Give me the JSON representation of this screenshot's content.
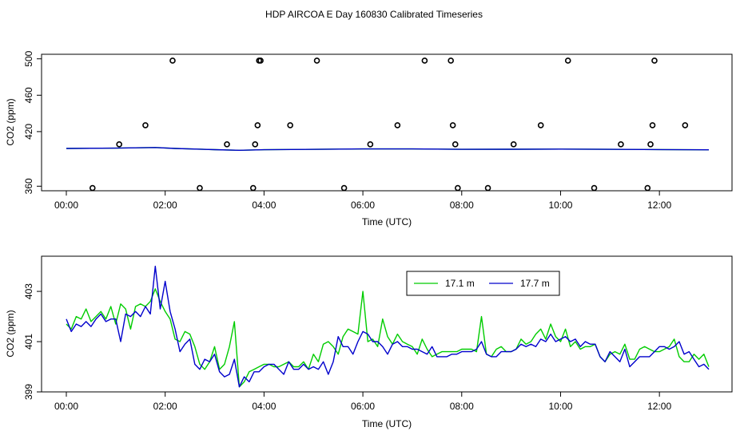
{
  "figure": {
    "title": "HDP AIRCOA E  Day 160830  Calibrated Timeseries"
  },
  "colors": {
    "axis": "#000000",
    "series_17_1": "#00cc00",
    "series_17_7": "#0000cc",
    "cal_points": "#000000"
  },
  "chart_data": [
    {
      "type": "line",
      "xlabel": "Time (UTC)",
      "ylabel": "CO2 (ppm)",
      "xlim": [
        0,
        13.0
      ],
      "ylim": [
        355,
        505
      ],
      "x_ticks": [
        0,
        2,
        4,
        6,
        8,
        10,
        12
      ],
      "x_tick_labels": [
        "00:00",
        "02:00",
        "04:00",
        "06:00",
        "08:00",
        "10:00",
        "12:00"
      ],
      "y_ticks": [
        360,
        420,
        460,
        500
      ],
      "y_tick_labels": [
        "360",
        "420",
        "460",
        "500"
      ],
      "series": [
        {
          "color_key": "series_17_1",
          "x": [
            0.0,
            1.0,
            1.8,
            2.2,
            3.0,
            3.5,
            4.0,
            6.0,
            7.0,
            8.0,
            9.0,
            10.0,
            11.0,
            12.0,
            13.0
          ],
          "values": [
            401.5,
            401.8,
            402.5,
            401.5,
            400.2,
            399.5,
            400.1,
            401.0,
            401.0,
            400.5,
            400.6,
            400.8,
            400.5,
            400.3,
            400.0
          ]
        },
        {
          "color_key": "series_17_7",
          "x": [
            0.0,
            1.0,
            1.8,
            2.2,
            3.0,
            3.5,
            4.0,
            6.0,
            7.0,
            8.0,
            9.0,
            10.0,
            11.0,
            12.0,
            13.0
          ],
          "values": [
            401.5,
            401.8,
            402.5,
            401.5,
            400.2,
            399.5,
            400.1,
            401.0,
            401.0,
            400.5,
            400.6,
            400.8,
            400.5,
            400.3,
            400.0
          ]
        }
      ],
      "calibration_points": {
        "x": [
          0.53,
          1.07,
          1.6,
          2.15,
          2.7,
          3.25,
          3.78,
          3.82,
          3.87,
          3.9,
          3.93,
          4.53,
          5.07,
          5.62,
          6.15,
          6.7,
          7.25,
          7.78,
          7.82,
          7.87,
          7.92,
          8.53,
          9.05,
          9.6,
          10.15,
          10.68,
          11.22,
          11.76,
          11.82,
          11.86,
          11.9,
          12.52
        ],
        "values": [
          358,
          406,
          427,
          498,
          358,
          406,
          358,
          406,
          427,
          498,
          498,
          427,
          498,
          358,
          406,
          427,
          498,
          498,
          427,
          406,
          358,
          358,
          406,
          427,
          498,
          358,
          406,
          358,
          406,
          427,
          498,
          427
        ]
      }
    },
    {
      "type": "line",
      "xlabel": "Time (UTC)",
      "ylabel": "CO2 (ppm)",
      "xlim": [
        0,
        13.0
      ],
      "ylim": [
        399.0,
        404.4
      ],
      "x_ticks": [
        0,
        2,
        4,
        6,
        8,
        10,
        12
      ],
      "x_tick_labels": [
        "00:00",
        "02:00",
        "04:00",
        "06:00",
        "08:00",
        "10:00",
        "12:00"
      ],
      "y_ticks": [
        399,
        401,
        403
      ],
      "y_tick_labels": [
        "399",
        "401",
        "403"
      ],
      "legend": {
        "placement": "top-right",
        "entries": [
          "17.1 m",
          "17.7 m"
        ]
      },
      "series": [
        {
          "name": "17.1 m",
          "color_key": "series_17_1",
          "x": [
            0.0,
            0.1,
            0.2,
            0.3,
            0.4,
            0.5,
            0.6,
            0.7,
            0.8,
            0.9,
            1.0,
            1.1,
            1.2,
            1.3,
            1.4,
            1.5,
            1.6,
            1.7,
            1.8,
            1.9,
            2.0,
            2.1,
            2.2,
            2.3,
            2.4,
            2.5,
            2.6,
            2.7,
            2.8,
            2.9,
            3.0,
            3.1,
            3.2,
            3.3,
            3.4,
            3.5,
            3.6,
            3.7,
            3.8,
            3.9,
            4.0,
            4.1,
            4.2,
            4.3,
            4.4,
            4.5,
            4.6,
            4.7,
            4.8,
            4.9,
            5.0,
            5.1,
            5.2,
            5.3,
            5.4,
            5.5,
            5.6,
            5.7,
            5.8,
            5.9,
            6.0,
            6.1,
            6.2,
            6.3,
            6.4,
            6.5,
            6.6,
            6.7,
            6.8,
            6.9,
            7.0,
            7.1,
            7.2,
            7.3,
            7.4,
            7.5,
            7.6,
            7.7,
            7.8,
            7.9,
            8.0,
            8.1,
            8.2,
            8.3,
            8.4,
            8.5,
            8.6,
            8.7,
            8.8,
            8.9,
            9.0,
            9.1,
            9.2,
            9.3,
            9.4,
            9.5,
            9.6,
            9.7,
            9.8,
            9.9,
            10.0,
            10.1,
            10.2,
            10.3,
            10.4,
            10.5,
            10.6,
            10.7,
            10.8,
            10.9,
            11.0,
            11.1,
            11.2,
            11.3,
            11.4,
            11.5,
            11.6,
            11.7,
            11.8,
            11.9,
            12.0,
            12.1,
            12.2,
            12.3,
            12.4,
            12.5,
            12.6,
            12.7,
            12.8,
            12.9,
            13.0
          ],
          "values": [
            401.7,
            401.5,
            402.0,
            401.9,
            402.3,
            401.8,
            402.0,
            402.2,
            401.9,
            402.4,
            401.7,
            402.5,
            402.3,
            401.5,
            402.4,
            402.5,
            402.4,
            402.6,
            403.1,
            402.6,
            402.2,
            401.9,
            401.1,
            401.0,
            401.4,
            401.3,
            400.8,
            400.1,
            399.9,
            400.2,
            400.8,
            399.9,
            400.1,
            400.8,
            401.8,
            399.2,
            399.4,
            399.8,
            399.9,
            400.0,
            400.1,
            400.1,
            400.0,
            400.0,
            400.1,
            400.2,
            400.0,
            400.0,
            400.2,
            399.9,
            400.5,
            400.2,
            400.9,
            401.0,
            400.8,
            400.5,
            401.2,
            401.5,
            401.4,
            401.3,
            403.0,
            401.0,
            401.1,
            400.8,
            401.9,
            401.2,
            400.9,
            401.3,
            401.0,
            400.9,
            400.8,
            400.5,
            401.1,
            400.7,
            400.4,
            400.5,
            400.6,
            400.6,
            400.6,
            400.6,
            400.7,
            400.7,
            400.7,
            400.6,
            402.0,
            400.5,
            400.4,
            400.7,
            400.8,
            400.6,
            400.6,
            400.7,
            401.1,
            400.9,
            401.0,
            401.3,
            401.5,
            401.1,
            401.7,
            401.2,
            401.0,
            401.5,
            400.8,
            401.0,
            400.7,
            400.8,
            400.8,
            400.9,
            400.4,
            400.2,
            400.5,
            400.6,
            400.5,
            400.9,
            400.3,
            400.3,
            400.7,
            400.8,
            400.7,
            400.6,
            400.6,
            400.7,
            400.8,
            401.1,
            400.4,
            400.2,
            400.2,
            400.5,
            400.3,
            400.5,
            400.0
          ]
        },
        {
          "name": "17.7 m",
          "color_key": "series_17_7",
          "x": [
            0.0,
            0.1,
            0.2,
            0.3,
            0.4,
            0.5,
            0.6,
            0.7,
            0.8,
            0.9,
            1.0,
            1.1,
            1.2,
            1.3,
            1.4,
            1.5,
            1.6,
            1.7,
            1.8,
            1.9,
            2.0,
            2.1,
            2.2,
            2.3,
            2.4,
            2.5,
            2.6,
            2.7,
            2.8,
            2.9,
            3.0,
            3.1,
            3.2,
            3.3,
            3.4,
            3.5,
            3.6,
            3.7,
            3.8,
            3.9,
            4.0,
            4.1,
            4.2,
            4.3,
            4.4,
            4.5,
            4.6,
            4.7,
            4.8,
            4.9,
            5.0,
            5.1,
            5.2,
            5.3,
            5.4,
            5.5,
            5.6,
            5.7,
            5.8,
            5.9,
            6.0,
            6.1,
            6.2,
            6.3,
            6.4,
            6.5,
            6.6,
            6.7,
            6.8,
            6.9,
            7.0,
            7.1,
            7.2,
            7.3,
            7.4,
            7.5,
            7.6,
            7.7,
            7.8,
            7.9,
            8.0,
            8.1,
            8.2,
            8.3,
            8.4,
            8.5,
            8.6,
            8.7,
            8.8,
            8.9,
            9.0,
            9.1,
            9.2,
            9.3,
            9.4,
            9.5,
            9.6,
            9.7,
            9.8,
            9.9,
            10.0,
            10.1,
            10.2,
            10.3,
            10.4,
            10.5,
            10.6,
            10.7,
            10.8,
            10.9,
            11.0,
            11.1,
            11.2,
            11.3,
            11.4,
            11.5,
            11.6,
            11.7,
            11.8,
            11.9,
            12.0,
            12.1,
            12.2,
            12.3,
            12.4,
            12.5,
            12.6,
            12.7,
            12.8,
            12.9,
            13.0
          ],
          "values": [
            401.9,
            401.4,
            401.7,
            401.6,
            401.8,
            401.6,
            401.9,
            402.1,
            401.8,
            401.9,
            401.9,
            401.0,
            402.1,
            402.0,
            402.2,
            402.0,
            402.4,
            402.1,
            404.0,
            402.3,
            403.4,
            402.2,
            401.5,
            400.6,
            400.9,
            401.1,
            400.1,
            399.9,
            400.3,
            400.2,
            400.5,
            399.8,
            399.6,
            399.7,
            400.3,
            399.2,
            399.6,
            399.4,
            399.8,
            399.8,
            400.0,
            400.1,
            400.1,
            399.9,
            399.7,
            400.2,
            399.9,
            399.9,
            400.1,
            399.9,
            400.0,
            399.9,
            400.2,
            399.7,
            400.2,
            401.2,
            400.8,
            400.8,
            400.5,
            401.0,
            401.4,
            401.3,
            401.0,
            401.0,
            400.8,
            400.5,
            400.9,
            401.0,
            400.8,
            400.8,
            400.7,
            400.7,
            400.6,
            400.5,
            400.8,
            400.4,
            400.4,
            400.4,
            400.5,
            400.5,
            400.6,
            400.6,
            400.6,
            400.7,
            401.0,
            400.5,
            400.4,
            400.4,
            400.6,
            400.6,
            400.6,
            400.7,
            400.9,
            400.8,
            400.9,
            400.8,
            401.1,
            401.0,
            401.3,
            401.0,
            401.1,
            401.2,
            401.0,
            401.1,
            400.8,
            401.0,
            400.9,
            400.9,
            400.4,
            400.2,
            400.6,
            400.4,
            400.2,
            400.7,
            400.0,
            400.2,
            400.4,
            400.4,
            400.4,
            400.6,
            400.8,
            400.8,
            400.7,
            400.8,
            401.0,
            400.5,
            400.6,
            400.3,
            400.0,
            400.1,
            399.9
          ]
        }
      ]
    }
  ]
}
